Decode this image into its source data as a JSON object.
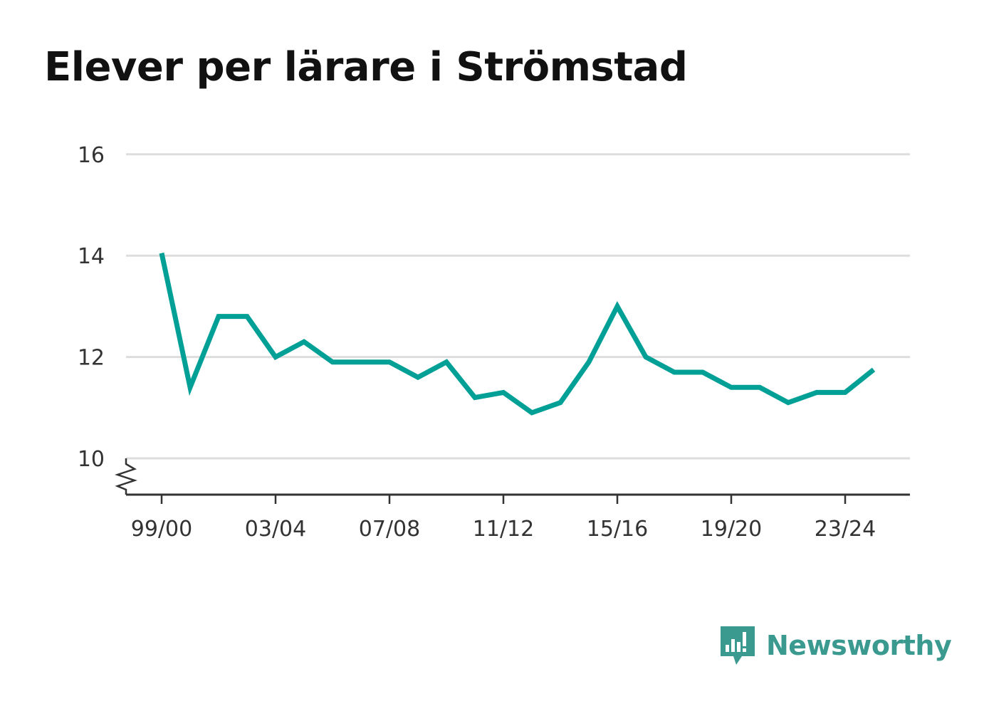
{
  "chart_data": {
    "type": "line",
    "title": "Elever per lärare i Strömstad",
    "xlabel": "",
    "ylabel": "",
    "x_tick_labels": [
      "99/00",
      "03/04",
      "07/08",
      "11/12",
      "15/16",
      "19/20",
      "23/24"
    ],
    "y_ticks": [
      10,
      12,
      14,
      16
    ],
    "ylim": [
      9.3,
      16
    ],
    "axis_break": true,
    "grid": "horizontal",
    "series": [
      {
        "x": [
          "99/00",
          "00/01",
          "01/02",
          "02/03",
          "03/04",
          "04/05",
          "05/06",
          "06/07",
          "07/08",
          "08/09",
          "09/10",
          "10/11",
          "11/12",
          "12/13",
          "13/14",
          "14/15",
          "15/16",
          "16/17",
          "17/18",
          "18/19",
          "19/20",
          "20/21",
          "21/22",
          "22/23",
          "23/24",
          "24/25"
        ],
        "values": [
          14.05,
          11.4,
          12.8,
          12.8,
          12.0,
          12.3,
          11.9,
          11.9,
          11.9,
          11.6,
          11.9,
          11.2,
          11.3,
          10.9,
          11.1,
          11.9,
          13.0,
          12.0,
          11.7,
          11.7,
          11.4,
          11.4,
          11.1,
          11.3,
          11.3,
          11.75
        ]
      }
    ]
  },
  "colors": {
    "line": "#00a096",
    "grid": "#dddddd",
    "axis": "#333333",
    "brand": "#3a9a8f"
  },
  "brand": {
    "name": "Newsworthy",
    "icon": "newsworthy-logo-icon"
  }
}
